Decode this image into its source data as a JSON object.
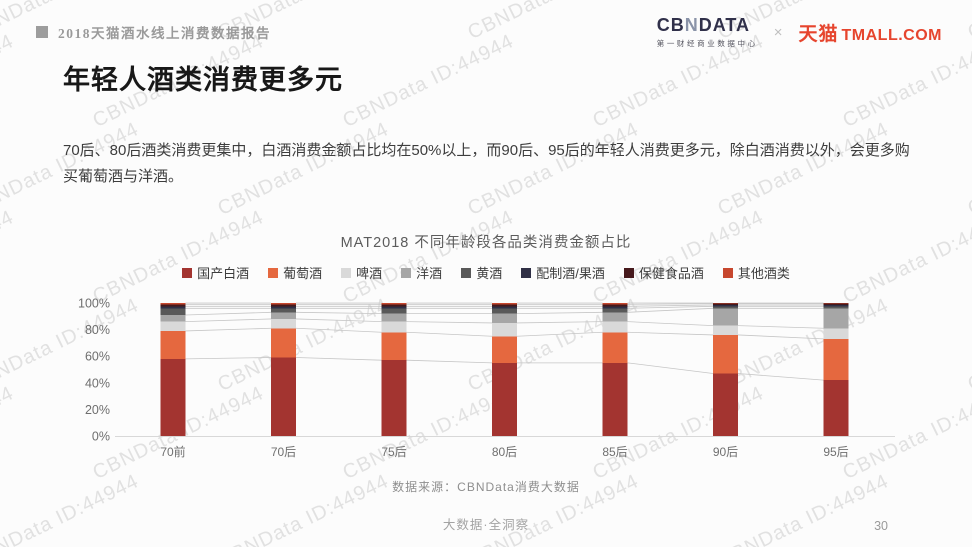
{
  "header": {
    "report_title": "2018天猫酒水线上消费数据报告",
    "cbndata": {
      "pre": "CB",
      "n": "N",
      "post": "DATA",
      "subtitle": "第一财经商业数据中心"
    },
    "separator": "×",
    "tmall": {
      "cn": "天猫",
      "en": "TMALL.COM"
    }
  },
  "watermark_text": "CBNData ID:44944",
  "title": "年轻人酒类消费更多元",
  "paragraph": "70后、80后酒类消费更集中，白酒消费金额占比均在50%以上，而90后、95后的年轻人消费更多元，除白酒消费以外，会更多购买葡萄酒与洋酒。",
  "chart_data": {
    "type": "bar",
    "stacked": true,
    "title": "MAT2018 不同年龄段各品类消费金额占比",
    "categories": [
      "70前",
      "70后",
      "75后",
      "80后",
      "85后",
      "90后",
      "95后"
    ],
    "series": [
      {
        "name": "国产白酒",
        "color": "#a33430",
        "values": [
          58,
          59,
          57,
          55,
          55,
          47,
          42
        ]
      },
      {
        "name": "葡萄酒",
        "color": "#e5683f",
        "values": [
          21,
          22,
          21,
          20,
          23,
          29,
          31
        ]
      },
      {
        "name": "啤酒",
        "color": "#d9d9d9",
        "values": [
          7,
          7,
          8,
          10,
          8,
          7,
          8
        ]
      },
      {
        "name": "洋酒",
        "color": "#a6a6a6",
        "values": [
          5,
          5,
          6,
          7,
          7,
          13,
          15
        ]
      },
      {
        "name": "黄酒",
        "color": "#595959",
        "values": [
          5,
          3,
          4,
          4,
          3,
          1.5,
          1.5
        ]
      },
      {
        "name": "配制酒/果酒",
        "color": "#2f2f45",
        "values": [
          1.5,
          1.5,
          1.5,
          1.5,
          1.5,
          1,
          1
        ]
      },
      {
        "name": "保健食品酒",
        "color": "#46191c",
        "values": [
          1.5,
          1.5,
          1.5,
          1.5,
          1.5,
          1,
          1
        ]
      },
      {
        "name": "其他酒类",
        "color": "#c7472e",
        "values": [
          1,
          1,
          1,
          1,
          1,
          0.5,
          0.5
        ]
      }
    ],
    "y_ticks": [
      "0%",
      "20%",
      "40%",
      "60%",
      "80%",
      "100%"
    ],
    "ylim": [
      0,
      100
    ],
    "legend_position": "top",
    "grid": false,
    "connector_lines": true
  },
  "source": "数据来源：CBNData消费大数据",
  "footer": {
    "tagline": "大数据·全洞察",
    "page_number": "30"
  }
}
